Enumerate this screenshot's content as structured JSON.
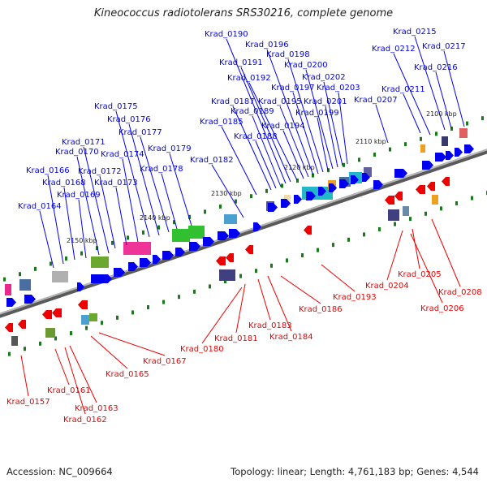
{
  "title": "Kineococcus radiotolerans SRS30216, complete genome",
  "footer": {
    "accession": "Accession: NC_009664",
    "topology": "Topology: linear; Length: 4,761,183 bp; Genes: 4,544"
  },
  "colors": {
    "plus_strand": "#0000ee",
    "minus_strand": "#ee0000",
    "backbone": "#888888",
    "tick": "#1a7a1a"
  },
  "kbp_labels": [
    "2150 kbp",
    "2140 kbp",
    "2130 kbp",
    "2120 kbp",
    "2110 kbp",
    "2100 kbp"
  ],
  "plus_genes": [
    "Krad_0164",
    "Krad_0166",
    "Krad_0168",
    "Krad_0169",
    "Krad_0170",
    "Krad_0171",
    "Krad_0172",
    "Krad_0173",
    "Krad_0174",
    "Krad_0175",
    "Krad_0176",
    "Krad_0177",
    "Krad_0178",
    "Krad_0179",
    "Krad_0182",
    "Krad_0185",
    "Krad_0187",
    "Krad_0188",
    "Krad_0189",
    "Krad_0190",
    "Krad_0191",
    "Krad_0192",
    "Krad_0194",
    "Krad_0195",
    "Krad_0196",
    "Krad_0197",
    "Krad_0198",
    "Krad_0199",
    "Krad_0200",
    "Krad_0201",
    "Krad_0202",
    "Krad_0203",
    "Krad_0207",
    "Krad_0211",
    "Krad_0212",
    "Krad_0215",
    "Krad_0216",
    "Krad_0217"
  ],
  "minus_genes": [
    "Krad_0157",
    "Krad_0161",
    "Krad_0162",
    "Krad_0163",
    "Krad_0165",
    "Krad_0167",
    "Krad_0180",
    "Krad_0181",
    "Krad_0183",
    "Krad_0184",
    "Krad_0186",
    "Krad_0193",
    "Krad_0204",
    "Krad_0205",
    "Krad_0206",
    "Krad_0208"
  ]
}
